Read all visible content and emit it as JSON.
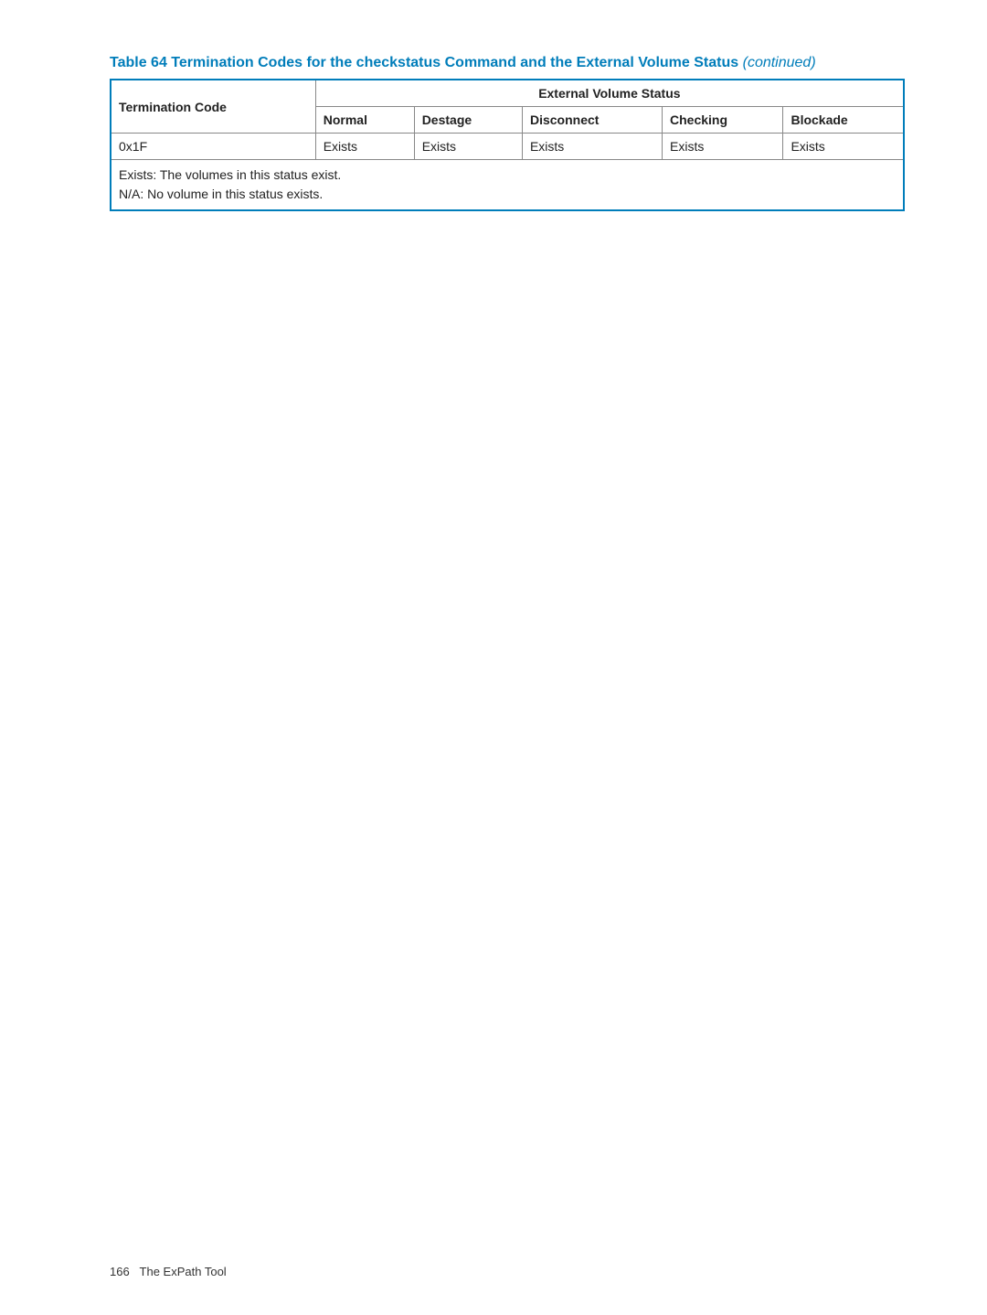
{
  "caption": {
    "main": "Table 64 Termination Codes for the checkstatus Command and the External Volume Status",
    "suffix": "(continued)"
  },
  "table": {
    "header": {
      "col1": "Termination Code",
      "group": "External Volume Status",
      "sub": {
        "c1": "Normal",
        "c2": "Destage",
        "c3": "Disconnect",
        "c4": "Checking",
        "c5": "Blockade"
      }
    },
    "row": {
      "code": "0x1F",
      "v1": "Exists",
      "v2": "Exists",
      "v3": "Exists",
      "v4": "Exists",
      "v5": "Exists"
    },
    "footnote": {
      "line1": "Exists: The volumes in this status exist.",
      "line2": "N/A: No volume in this status exists."
    }
  },
  "footer": {
    "page": "166",
    "section": "The ExPath Tool"
  },
  "colors": {
    "accent": "#007dba",
    "border": "#888888",
    "text": "#222222",
    "background": "#ffffff"
  }
}
